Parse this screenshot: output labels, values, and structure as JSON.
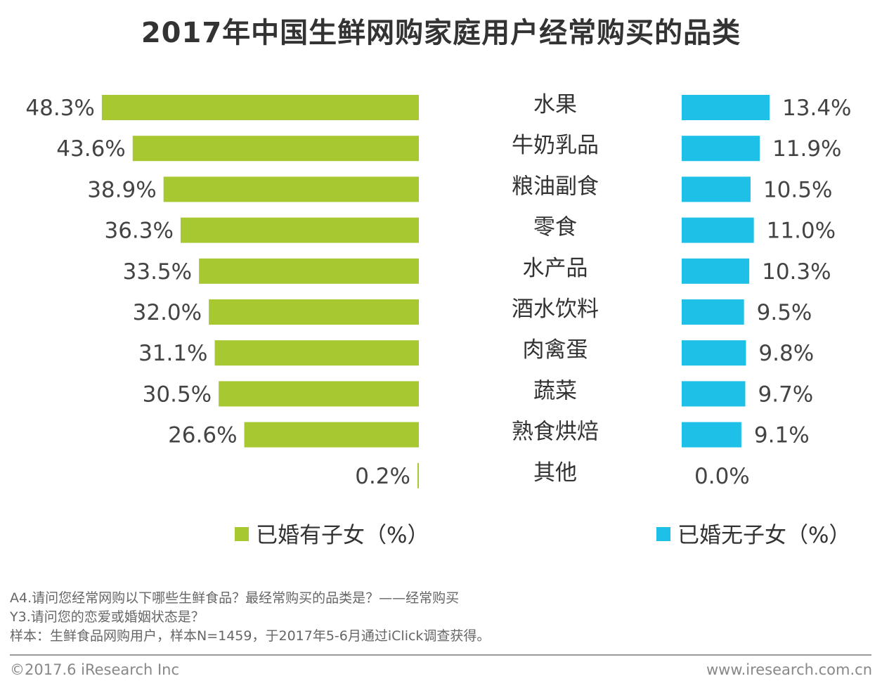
{
  "chart_data": {
    "type": "bar",
    "title": "2017年中国生鲜网购家庭用户经常购买的品类",
    "categories": [
      "水果",
      "牛奶乳品",
      "粮油副食",
      "零食",
      "水产品",
      "酒水饮料",
      "肉禽蛋",
      "蔬菜",
      "熟食烘焙",
      "其他"
    ],
    "series": [
      {
        "name": "已婚有子女（%）",
        "color": "#a8c832",
        "values": [
          48.3,
          43.6,
          38.9,
          36.3,
          33.5,
          32.0,
          31.1,
          30.5,
          26.6,
          0.2
        ],
        "labels": [
          "48.3%",
          "43.6%",
          "38.9%",
          "36.3%",
          "33.5%",
          "32.0%",
          "31.1%",
          "30.5%",
          "26.6%",
          "0.2%"
        ]
      },
      {
        "name": "已婚无子女（%）",
        "color": "#1ec0e8",
        "values": [
          13.4,
          11.9,
          10.5,
          11.0,
          10.3,
          9.5,
          9.8,
          9.7,
          9.1,
          0.0
        ],
        "labels": [
          "13.4%",
          "11.9%",
          "10.5%",
          "11.0%",
          "10.3%",
          "9.5%",
          "9.8%",
          "9.7%",
          "9.1%",
          "0.0%"
        ]
      }
    ],
    "xlabel": "",
    "ylabel": ""
  },
  "notes": {
    "line1": "A4.请问您经常网购以下哪些生鲜食品？最经常购买的品类是？——经常购买",
    "line2": "Y3.请问您的恋爱或婚姻状态是？",
    "line3": "样本：生鲜食品网购用户，样本N=1459，于2017年5-6月通过iClick调查获得。"
  },
  "footer": {
    "copyright": "©2017.6 iResearch Inc",
    "website": "www.iresearch.com.cn"
  }
}
